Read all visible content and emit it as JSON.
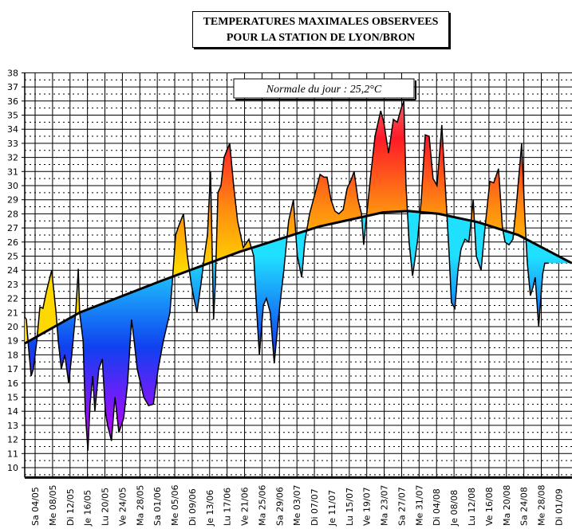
{
  "chart_data": {
    "type": "area",
    "title": [
      "TEMPERATURES MAXIMALES OBSERVEES",
      "POUR LA STATION DE LYON/BRON"
    ],
    "annotation": "Normale du jour : 25,2°C",
    "xlabel": "",
    "ylabel": "",
    "x_unit": "days since 04/05",
    "xlim": [
      -2.4,
      123
    ],
    "ylim": [
      9.3,
      38
    ],
    "y_ticks": [
      10,
      11,
      12,
      13,
      14,
      15,
      16,
      17,
      18,
      19,
      20,
      21,
      22,
      23,
      24,
      25,
      26,
      27,
      28,
      29,
      30,
      31,
      32,
      33,
      34,
      35,
      36,
      37,
      38
    ],
    "x_tick_step_days": 4,
    "x_tick_labels": [
      "Sa 04/05",
      "Me 08/05",
      "Di 12/05",
      "Je 16/05",
      "Lu 20/05",
      "Ve 24/05",
      "Ma 28/05",
      "Sa 01/06",
      "Me 05/06",
      "Di 09/06",
      "Je 13/06",
      "Lu 17/06",
      "Ve 21/06",
      "Ma 25/06",
      "Sa 29/06",
      "Me 03/07",
      "Di 07/07",
      "Je 11/07",
      "Lu 15/07",
      "Ve 19/07",
      "Ma 23/07",
      "Sa 27/07",
      "Me 31/07",
      "Di 04/08",
      "Je 08/08",
      "Lu 12/08",
      "Ve 16/08",
      "Ma 20/08",
      "Sa 24/08",
      "Me 28/08",
      "Di 01/09"
    ],
    "grid": true,
    "series": [
      {
        "name": "Température maximale observée",
        "points": [
          [
            -2.4,
            20.7
          ],
          [
            -2.0,
            20.5
          ],
          [
            -1.5,
            18.5
          ],
          [
            -0.9,
            16.5
          ],
          [
            -0.4,
            17
          ],
          [
            0.4,
            19
          ],
          [
            1.1,
            21.4
          ],
          [
            1.8,
            21.3
          ],
          [
            2.6,
            22.5
          ],
          [
            3.8,
            24
          ],
          [
            4.8,
            21
          ],
          [
            5.3,
            19
          ],
          [
            6.0,
            17
          ],
          [
            6.8,
            18
          ],
          [
            7.7,
            16
          ],
          [
            8.4,
            18
          ],
          [
            9.3,
            21
          ],
          [
            9.9,
            24.1
          ],
          [
            10.2,
            21
          ],
          [
            11.0,
            19
          ],
          [
            11.5,
            14
          ],
          [
            12.1,
            11.2
          ],
          [
            12.6,
            14.5
          ],
          [
            13.2,
            16.5
          ],
          [
            13.7,
            14
          ],
          [
            14.6,
            17
          ],
          [
            15.4,
            17.7
          ],
          [
            16.1,
            14
          ],
          [
            16.6,
            13
          ],
          [
            17.5,
            11.9
          ],
          [
            18.3,
            15
          ],
          [
            19.2,
            12.5
          ],
          [
            20.3,
            13.5
          ],
          [
            21.2,
            16
          ],
          [
            22.1,
            20.5
          ],
          [
            22.7,
            19
          ],
          [
            23.4,
            17
          ],
          [
            24.9,
            15
          ],
          [
            26.0,
            14.4
          ],
          [
            27.1,
            14.5
          ],
          [
            28.2,
            17
          ],
          [
            29.4,
            19
          ],
          [
            30.9,
            21
          ],
          [
            31.4,
            23
          ],
          [
            32.2,
            26.5
          ],
          [
            33.1,
            27.3
          ],
          [
            34.0,
            28
          ],
          [
            34.9,
            25
          ],
          [
            35.8,
            23
          ],
          [
            36.4,
            22
          ],
          [
            37.1,
            21
          ],
          [
            38.0,
            23
          ],
          [
            38.8,
            25
          ],
          [
            39.5,
            26.5
          ],
          [
            40.2,
            31
          ],
          [
            40.9,
            20.5
          ],
          [
            41.3,
            23
          ],
          [
            41.9,
            29.5
          ],
          [
            42.6,
            30
          ],
          [
            43.3,
            32
          ],
          [
            44.6,
            33
          ],
          [
            45.5,
            30
          ],
          [
            46.4,
            27.5
          ],
          [
            47.7,
            25.6
          ],
          [
            49.0,
            26.2
          ],
          [
            50.1,
            25
          ],
          [
            50.8,
            21
          ],
          [
            51.4,
            18
          ],
          [
            52.3,
            21.5
          ],
          [
            53.0,
            22
          ],
          [
            53.9,
            21
          ],
          [
            54.8,
            17.4
          ],
          [
            55.9,
            21
          ],
          [
            57.0,
            24
          ],
          [
            58.1,
            27.5
          ],
          [
            59.2,
            29
          ],
          [
            60.1,
            25
          ],
          [
            61.1,
            23.5
          ],
          [
            61.8,
            26
          ],
          [
            62.9,
            28
          ],
          [
            64.2,
            29.5
          ],
          [
            65.3,
            30.8
          ],
          [
            66.2,
            30.6
          ],
          [
            66.9,
            30.6
          ],
          [
            67.8,
            29
          ],
          [
            68.7,
            28.2
          ],
          [
            69.6,
            28
          ],
          [
            70.6,
            28.3
          ],
          [
            71.5,
            29.8
          ],
          [
            72.4,
            30.4
          ],
          [
            73.1,
            31
          ],
          [
            74.0,
            29
          ],
          [
            74.8,
            28
          ],
          [
            75.3,
            25.8
          ],
          [
            76.0,
            28
          ],
          [
            77.0,
            31
          ],
          [
            77.9,
            33.5
          ],
          [
            79.2,
            35.3
          ],
          [
            79.9,
            34.5
          ],
          [
            81.0,
            32.3
          ],
          [
            82.1,
            34.7
          ],
          [
            83.0,
            34.5
          ],
          [
            83.9,
            35.5
          ],
          [
            84.5,
            36
          ],
          [
            85.0,
            30
          ],
          [
            85.7,
            26
          ],
          [
            86.5,
            23.6
          ],
          [
            87.6,
            26
          ],
          [
            88.5,
            29
          ],
          [
            89.4,
            33.6
          ],
          [
            90.3,
            33.5
          ],
          [
            91.2,
            30.5
          ],
          [
            92.1,
            30
          ],
          [
            93.2,
            34.3
          ],
          [
            94.0,
            30
          ],
          [
            94.9,
            25
          ],
          [
            95.4,
            21.7
          ],
          [
            96.2,
            21.3
          ],
          [
            96.9,
            24
          ],
          [
            97.6,
            25.5
          ],
          [
            98.5,
            26.2
          ],
          [
            99.4,
            26
          ],
          [
            100.4,
            29
          ],
          [
            101.1,
            25
          ],
          [
            102.2,
            24
          ],
          [
            103.1,
            27
          ],
          [
            104.2,
            30.3
          ],
          [
            105.1,
            30.2
          ],
          [
            106.2,
            31.2
          ],
          [
            107.1,
            27
          ],
          [
            107.7,
            26
          ],
          [
            108.6,
            25.8
          ],
          [
            109.5,
            26.2
          ],
          [
            110.4,
            29
          ],
          [
            111.5,
            33
          ],
          [
            112.2,
            28
          ],
          [
            112.8,
            24.5
          ],
          [
            113.5,
            22.2
          ],
          [
            114.1,
            22.8
          ],
          [
            114.6,
            23.5
          ],
          [
            115.4,
            20
          ],
          [
            116.3,
            23.7
          ],
          [
            116.8,
            24.5
          ],
          [
            117.7,
            24.5
          ]
        ]
      },
      {
        "name": "Normale",
        "points": [
          [
            -2.4,
            18.8
          ],
          [
            10.2,
            21
          ],
          [
            28.5,
            23.2
          ],
          [
            46.8,
            25.3
          ],
          [
            65.1,
            27.1
          ],
          [
            79.7,
            28.1
          ],
          [
            85.6,
            28.2
          ],
          [
            92.5,
            28
          ],
          [
            101.6,
            27.4
          ],
          [
            110.7,
            26.5
          ],
          [
            123,
            24.5
          ]
        ]
      }
    ],
    "colors": {
      "warm_low": "#ffd800",
      "warm_mid": "#ff8c10",
      "warm_high": "#ff1a28",
      "warm_top": "#f07070",
      "cold_high": "#20e0ff",
      "cold_mid": "#1040f0",
      "cold_low": "#c000ff"
    }
  }
}
